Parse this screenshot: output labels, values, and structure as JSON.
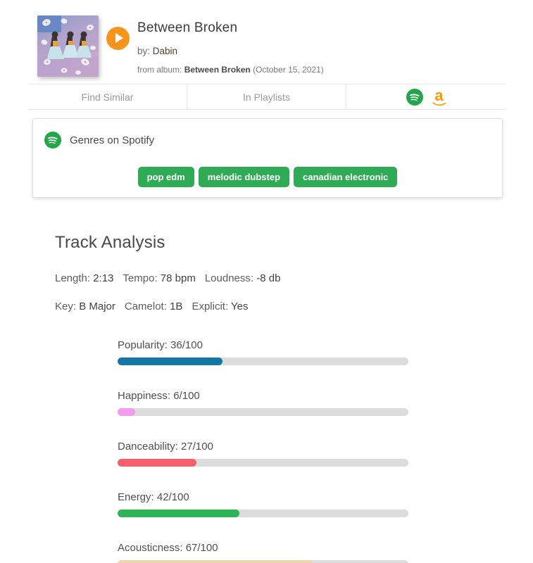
{
  "header": {
    "title": "Between Broken",
    "by_label": "by:",
    "artist": "Dabin",
    "from_album_label": "from album:",
    "album_name": "Between Broken",
    "album_date": "(October 15, 2021)",
    "play_icon": "play-icon",
    "play_color": "#f7941e"
  },
  "tab_bar": {
    "tabs": [
      {
        "label": "Find Similar"
      },
      {
        "label": "In Playlists"
      }
    ],
    "service_icons": [
      {
        "name": "spotify-icon",
        "color": "#23a64a"
      },
      {
        "name": "amazon-icon",
        "glyph": "a",
        "color": "#ff9900"
      }
    ]
  },
  "genres_card": {
    "icon": "spotify-icon",
    "title": "Genres on Spotify",
    "tag_color": "#2fab55",
    "tags": [
      "pop edm",
      "melodic dubstep",
      "canadian electronic"
    ]
  },
  "analysis": {
    "heading": "Track Analysis",
    "stats_row1": [
      {
        "label": "Length:",
        "value": "2:13"
      },
      {
        "label": "Tempo:",
        "value": "78 bpm"
      },
      {
        "label": "Loudness:",
        "value": "-8 db"
      }
    ],
    "stats_row2": [
      {
        "label": "Key:",
        "value": "B Major"
      },
      {
        "label": "Camelot:",
        "value": "1B"
      },
      {
        "label": "Explicit:",
        "value": "Yes"
      }
    ],
    "bars": [
      {
        "label": "Popularity",
        "display": "Popularity: 36/100",
        "value": 36,
        "max": 100,
        "color": "#1477a2"
      },
      {
        "label": "Happiness",
        "display": "Happiness: 6/100",
        "value": 6,
        "max": 100,
        "color": "#f49af0"
      },
      {
        "label": "Danceability",
        "display": "Danceability: 27/100",
        "value": 27,
        "max": 100,
        "color": "#f85f6b"
      },
      {
        "label": "Energy",
        "display": "Energy: 42/100",
        "value": 42,
        "max": 100,
        "color": "#2db457"
      },
      {
        "label": "Acousticness",
        "display": "Acousticness: 67/100",
        "value": 67,
        "max": 100,
        "color": "#eed5ae"
      }
    ]
  }
}
